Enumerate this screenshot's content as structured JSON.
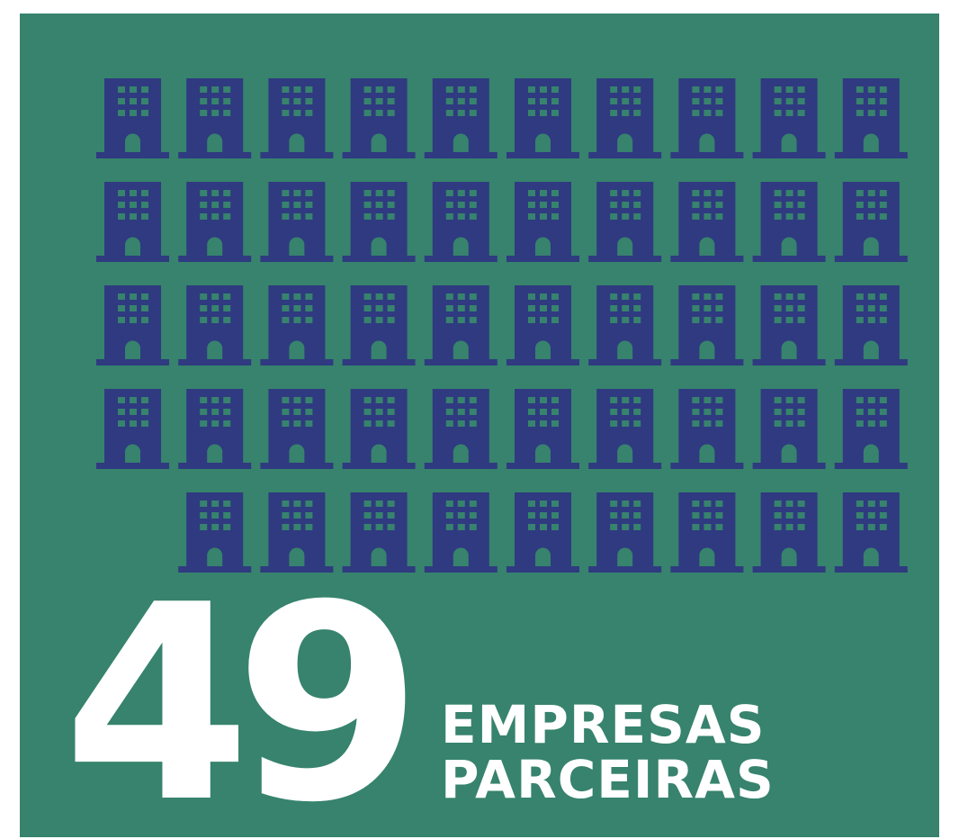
{
  "chart_data": {
    "type": "pictogram",
    "value": 49,
    "caption": [
      "EMPRESAS",
      "PARCEIRAS"
    ],
    "color": "#2f3a80",
    "background": "#37836d"
  }
}
